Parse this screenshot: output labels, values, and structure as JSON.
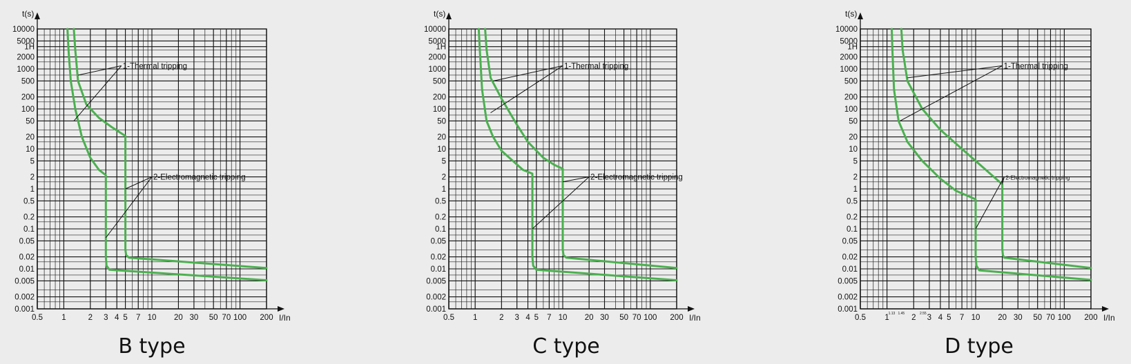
{
  "chart_data": [
    {
      "type": "line",
      "title": "B type",
      "xlabel": "I/In",
      "ylabel": "t(s)",
      "x_scale": "log",
      "y_scale": "log",
      "xlim": [
        0.5,
        200
      ],
      "ylim": [
        0.001,
        10000
      ],
      "grid": true,
      "x_ticks": [
        "0.5",
        "1",
        "2",
        "3",
        "4",
        "5",
        "7",
        "10",
        "20",
        "30",
        "50",
        "70",
        "100",
        "200"
      ],
      "x_tick_values": [
        0.5,
        1,
        2,
        3,
        4,
        5,
        7,
        10,
        20,
        30,
        50,
        70,
        100,
        200
      ],
      "x_minor_ticks": [],
      "y_ticks": [
        "10000",
        "5000",
        "1H",
        "2000",
        "1000",
        "500",
        "200",
        "100",
        "50",
        "20",
        "10",
        "5",
        "2",
        "1",
        "0.5",
        "0.2",
        "0.1",
        "0.05",
        "0.02",
        "0.01",
        "0.005",
        "0.002",
        "0.001"
      ],
      "y_tick_values": [
        10000,
        5000,
        3600,
        2000,
        1000,
        500,
        200,
        100,
        50,
        20,
        10,
        5,
        2,
        1,
        0.5,
        0.2,
        0.1,
        0.05,
        0.02,
        0.01,
        0.005,
        0.002,
        0.001
      ],
      "series": [
        {
          "points": [
            [
              1.1,
              10000
            ],
            [
              1.13,
              3000
            ],
            [
              1.2,
              500
            ],
            [
              1.35,
              100
            ],
            [
              1.6,
              20
            ],
            [
              2,
              6
            ],
            [
              2.5,
              3
            ],
            [
              3,
              2.2
            ],
            [
              3,
              0.02
            ],
            [
              3.05,
              0.012
            ],
            [
              3.3,
              0.0095
            ],
            [
              200,
              0.0052
            ]
          ]
        },
        {
          "points": [
            [
              1.3,
              10000
            ],
            [
              1.35,
              3000
            ],
            [
              1.45,
              500
            ],
            [
              1.8,
              130
            ],
            [
              2.5,
              60
            ],
            [
              3.5,
              35
            ],
            [
              5,
              21
            ],
            [
              5,
              0.03
            ],
            [
              5.1,
              0.022
            ],
            [
              5.5,
              0.019
            ],
            [
              200,
              0.0105
            ]
          ]
        }
      ],
      "annotations": [
        {
          "text": "1-Thermal tripping",
          "anchor": [
            4.5,
            1200
          ],
          "targets": [
            [
              1.45,
              700
            ],
            [
              1.3,
              50
            ]
          ]
        },
        {
          "text": "2-Electromagnetic tripping",
          "anchor": [
            10,
            2.0
          ],
          "targets": [
            [
              5,
              1.0
            ],
            [
              3,
              0.06
            ]
          ]
        }
      ]
    },
    {
      "type": "line",
      "title": "C type",
      "xlabel": "I/In",
      "ylabel": "t(s)",
      "x_scale": "log",
      "y_scale": "log",
      "xlim": [
        0.5,
        200
      ],
      "ylim": [
        0.001,
        10000
      ],
      "grid": true,
      "x_ticks": [
        "0.5",
        "1",
        "2",
        "3",
        "4",
        "5",
        "7",
        "10",
        "20",
        "30",
        "50",
        "70",
        "100",
        "200"
      ],
      "x_tick_values": [
        0.5,
        1,
        2,
        3,
        4,
        5,
        7,
        10,
        20,
        30,
        50,
        70,
        100,
        200
      ],
      "x_minor_ticks": [],
      "y_ticks": [
        "10000",
        "5000",
        "1H",
        "2000",
        "1000",
        "500",
        "200",
        "100",
        "50",
        "20",
        "10",
        "5",
        "2",
        "1",
        "0.5",
        "0.2",
        "0.1",
        "0.05",
        "0.02",
        "0.01",
        "0.005",
        "0.002",
        "0.001"
      ],
      "y_tick_values": [
        10000,
        5000,
        3600,
        2000,
        1000,
        500,
        200,
        100,
        50,
        20,
        10,
        5,
        2,
        1,
        0.5,
        0.2,
        0.1,
        0.05,
        0.02,
        0.01,
        0.005,
        0.002,
        0.001
      ],
      "series": [
        {
          "points": [
            [
              1.1,
              10000
            ],
            [
              1.13,
              3000
            ],
            [
              1.2,
              300
            ],
            [
              1.35,
              50
            ],
            [
              1.6,
              20
            ],
            [
              2,
              9
            ],
            [
              2.7,
              5
            ],
            [
              3.5,
              3
            ],
            [
              4.5,
              2.4
            ],
            [
              4.5,
              0.02
            ],
            [
              4.6,
              0.012
            ],
            [
              5,
              0.0095
            ],
            [
              200,
              0.0052
            ]
          ]
        },
        {
          "points": [
            [
              1.3,
              10000
            ],
            [
              1.35,
              3000
            ],
            [
              1.5,
              600
            ],
            [
              2,
              180
            ],
            [
              3,
              40
            ],
            [
              4,
              15
            ],
            [
              6,
              6
            ],
            [
              8,
              4
            ],
            [
              10,
              3.2
            ],
            [
              10,
              0.03
            ],
            [
              10.2,
              0.022
            ],
            [
              11,
              0.019
            ],
            [
              200,
              0.0105
            ]
          ]
        }
      ],
      "annotations": [
        {
          "text": "1-Thermal tripping",
          "anchor": [
            10,
            1200
          ],
          "targets": [
            [
              1.6,
              500
            ],
            [
              1.5,
              80
            ]
          ]
        },
        {
          "text": "2-Electromagnetic tripping",
          "anchor": [
            20,
            2.0
          ],
          "targets": [
            [
              10,
              1.5
            ],
            [
              4.5,
              0.1
            ]
          ]
        }
      ]
    },
    {
      "type": "line",
      "title": "D type",
      "xlabel": "I/In",
      "ylabel": "t(s)",
      "x_scale": "log",
      "y_scale": "log",
      "xlim": [
        0.5,
        200
      ],
      "ylim": [
        0.001,
        10000
      ],
      "grid": true,
      "x_ticks": [
        "0.5",
        "1",
        "2",
        "3",
        "4",
        "5",
        "7",
        "10",
        "20",
        "30",
        "50",
        "70",
        "100",
        "200"
      ],
      "x_tick_values": [
        0.5,
        1,
        2,
        3,
        4,
        5,
        7,
        10,
        20,
        30,
        50,
        70,
        100,
        200
      ],
      "x_minor_ticks": [
        "1.13",
        "1.45",
        "2.55"
      ],
      "x_minor_tick_values": [
        1.13,
        1.45,
        2.55
      ],
      "y_ticks": [
        "10000",
        "5000",
        "1H",
        "2000",
        "1000",
        "500",
        "200",
        "100",
        "50",
        "20",
        "10",
        "5",
        "2",
        "1",
        "0.5",
        "0.2",
        "0.1",
        "0.05",
        "0.02",
        "0.01",
        "0.005",
        "0.002",
        "0.001"
      ],
      "y_tick_values": [
        10000,
        5000,
        3600,
        2000,
        1000,
        500,
        200,
        100,
        50,
        20,
        10,
        5,
        2,
        1,
        0.5,
        0.2,
        0.1,
        0.05,
        0.02,
        0.01,
        0.005,
        0.002,
        0.001
      ],
      "series": [
        {
          "points": [
            [
              1.13,
              10000
            ],
            [
              1.15,
              3000
            ],
            [
              1.2,
              300
            ],
            [
              1.35,
              50
            ],
            [
              1.7,
              15
            ],
            [
              2.5,
              5
            ],
            [
              4,
              1.8
            ],
            [
              6,
              0.9
            ],
            [
              10,
              0.55
            ],
            [
              10,
              0.02
            ],
            [
              10.2,
              0.012
            ],
            [
              11,
              0.0092
            ],
            [
              200,
              0.0053
            ]
          ]
        },
        {
          "points": [
            [
              1.45,
              10000
            ],
            [
              1.5,
              3000
            ],
            [
              1.7,
              500
            ],
            [
              2.5,
              100
            ],
            [
              4,
              30
            ],
            [
              7,
              10
            ],
            [
              12,
              3.5
            ],
            [
              20,
              1.3
            ],
            [
              20,
              0.03
            ],
            [
              20.3,
              0.022
            ],
            [
              21,
              0.019
            ],
            [
              200,
              0.0105
            ]
          ]
        }
      ],
      "annotations": [
        {
          "text": "1-Thermal tripping",
          "anchor": [
            20,
            1200
          ],
          "targets": [
            [
              1.7,
              600
            ],
            [
              1.4,
              50
            ]
          ]
        },
        {
          "text": "2-Electromagnetic tripping",
          "anchor": [
            21,
            2.0
          ],
          "targets": [
            [
              20,
              1.3
            ],
            [
              10,
              0.1
            ]
          ]
        }
      ]
    }
  ]
}
